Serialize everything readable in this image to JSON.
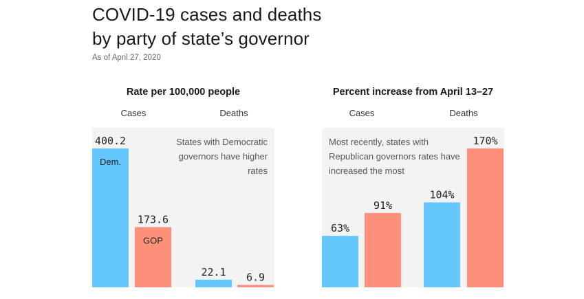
{
  "header": {
    "title_line1": "COVID-19 cases and deaths",
    "title_line2": "by party of state’s governor",
    "subtitle": "As of April 27, 2020"
  },
  "colors": {
    "dem": "#66c7fc",
    "gop": "#fc907a",
    "panel_bg": "#f3f3f3"
  },
  "chart_data": [
    {
      "type": "bar",
      "title": "Rate per 100,000 people",
      "groups": [
        "Cases",
        "Deaths"
      ],
      "series": [
        {
          "name": "Dem.",
          "values": [
            400.2,
            22.1
          ],
          "labels": [
            "400.2",
            "22.1"
          ]
        },
        {
          "name": "GOP",
          "values": [
            173.6,
            6.9
          ],
          "labels": [
            "173.6",
            "6.9"
          ]
        }
      ],
      "annotation": "States with Democratic governors have higher rates",
      "ylim": [
        0,
        400.2
      ]
    },
    {
      "type": "bar",
      "title": "Percent increase from April 13–27",
      "groups": [
        "Cases",
        "Deaths"
      ],
      "series": [
        {
          "values": [
            63,
            104
          ],
          "labels": [
            "63%",
            "104%"
          ]
        },
        {
          "values": [
            91,
            170
          ],
          "labels": [
            "91%",
            "170%"
          ]
        }
      ],
      "annotation": "Most recently, states with Republican governors rates have increased the most",
      "ylim": [
        0,
        170
      ]
    }
  ]
}
